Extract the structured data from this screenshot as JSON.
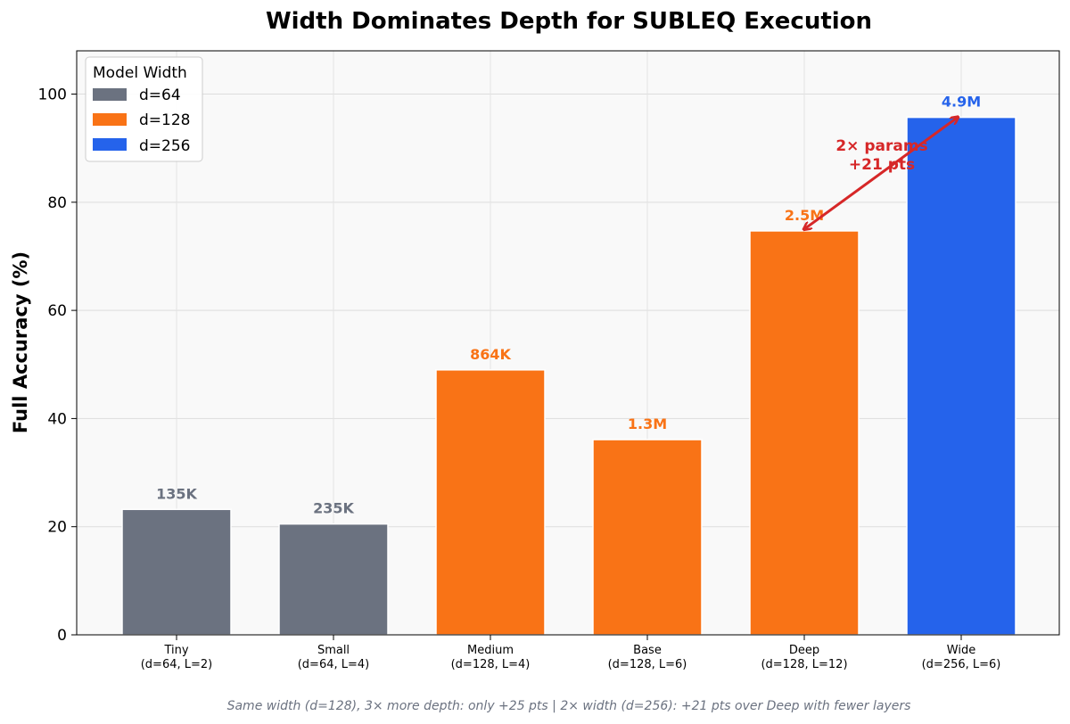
{
  "chart_data": {
    "type": "bar",
    "title": "Width Dominates Depth for SUBLEQ Execution",
    "xlabel": "",
    "ylabel": "Full Accuracy (%)",
    "ylim": [
      0,
      108
    ],
    "yticks": [
      0,
      20,
      40,
      60,
      80,
      100
    ],
    "grid": true,
    "categories": [
      {
        "name": "Tiny",
        "config": "(d=64, L=2)"
      },
      {
        "name": "Small",
        "config": "(d=64, L=4)"
      },
      {
        "name": "Medium",
        "config": "(d=128, L=4)"
      },
      {
        "name": "Base",
        "config": "(d=128, L=6)"
      },
      {
        "name": "Deep",
        "config": "(d=128, L=12)"
      },
      {
        "name": "Wide",
        "config": "(d=256, L=6)"
      }
    ],
    "values": [
      23.2,
      20.5,
      49.0,
      36.1,
      74.7,
      95.7
    ],
    "param_labels": [
      "135K",
      "235K",
      "864K",
      "1.3M",
      "2.5M",
      "4.9M"
    ],
    "groups": [
      "d=64",
      "d=64",
      "d=128",
      "d=128",
      "d=128",
      "d=256"
    ],
    "legend": {
      "title": "Model Width",
      "location": "upper-left",
      "entries": [
        {
          "label": "d=64",
          "color": "#6b7280"
        },
        {
          "label": "d=128",
          "color": "#f97316"
        },
        {
          "label": "d=256",
          "color": "#2563eb"
        }
      ]
    },
    "annotation": {
      "lines": [
        "2× params",
        "+21 pts"
      ],
      "from_category": "Deep",
      "to_category": "Wide",
      "color": "#d62728"
    },
    "footnote": "Same width (d=128), 3× more depth: only +25 pts  |  2× width (d=256): +21 pts over Deep with fewer layers"
  }
}
